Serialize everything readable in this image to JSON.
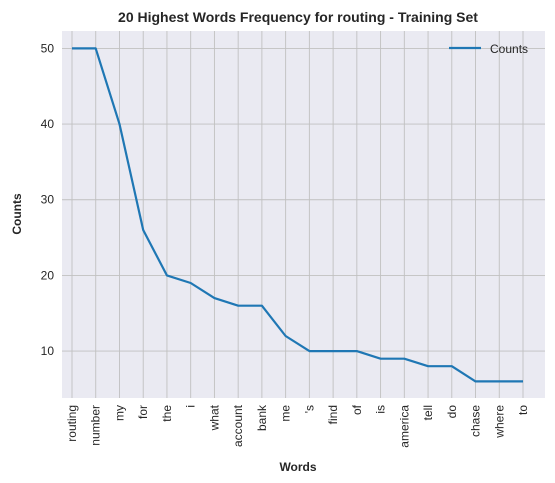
{
  "chart_data": {
    "type": "line",
    "title": "20 Highest Words Frequency for routing - Training Set",
    "xlabel": "Words",
    "ylabel": "Counts",
    "categories": [
      "routing",
      "number",
      "my",
      "for",
      "the",
      "i",
      "what",
      "account",
      "bank",
      "me",
      "'s",
      "find",
      "of",
      "is",
      "america",
      "tell",
      "do",
      "chase",
      "where",
      "to"
    ],
    "series": [
      {
        "name": "Counts",
        "values": [
          50,
          50,
          40,
          26,
          20,
          19,
          17,
          16,
          16,
          12,
          10,
          10,
          10,
          9,
          9,
          8,
          8,
          6,
          6,
          6
        ],
        "color": "#1f77b4"
      }
    ],
    "yticks": [
      10,
      20,
      30,
      40,
      50
    ],
    "ylim": [
      3.8,
      52.3
    ],
    "grid": true,
    "legend": "top-right",
    "background": "#eaeaf2",
    "grid_color": "#c0c0c0"
  }
}
